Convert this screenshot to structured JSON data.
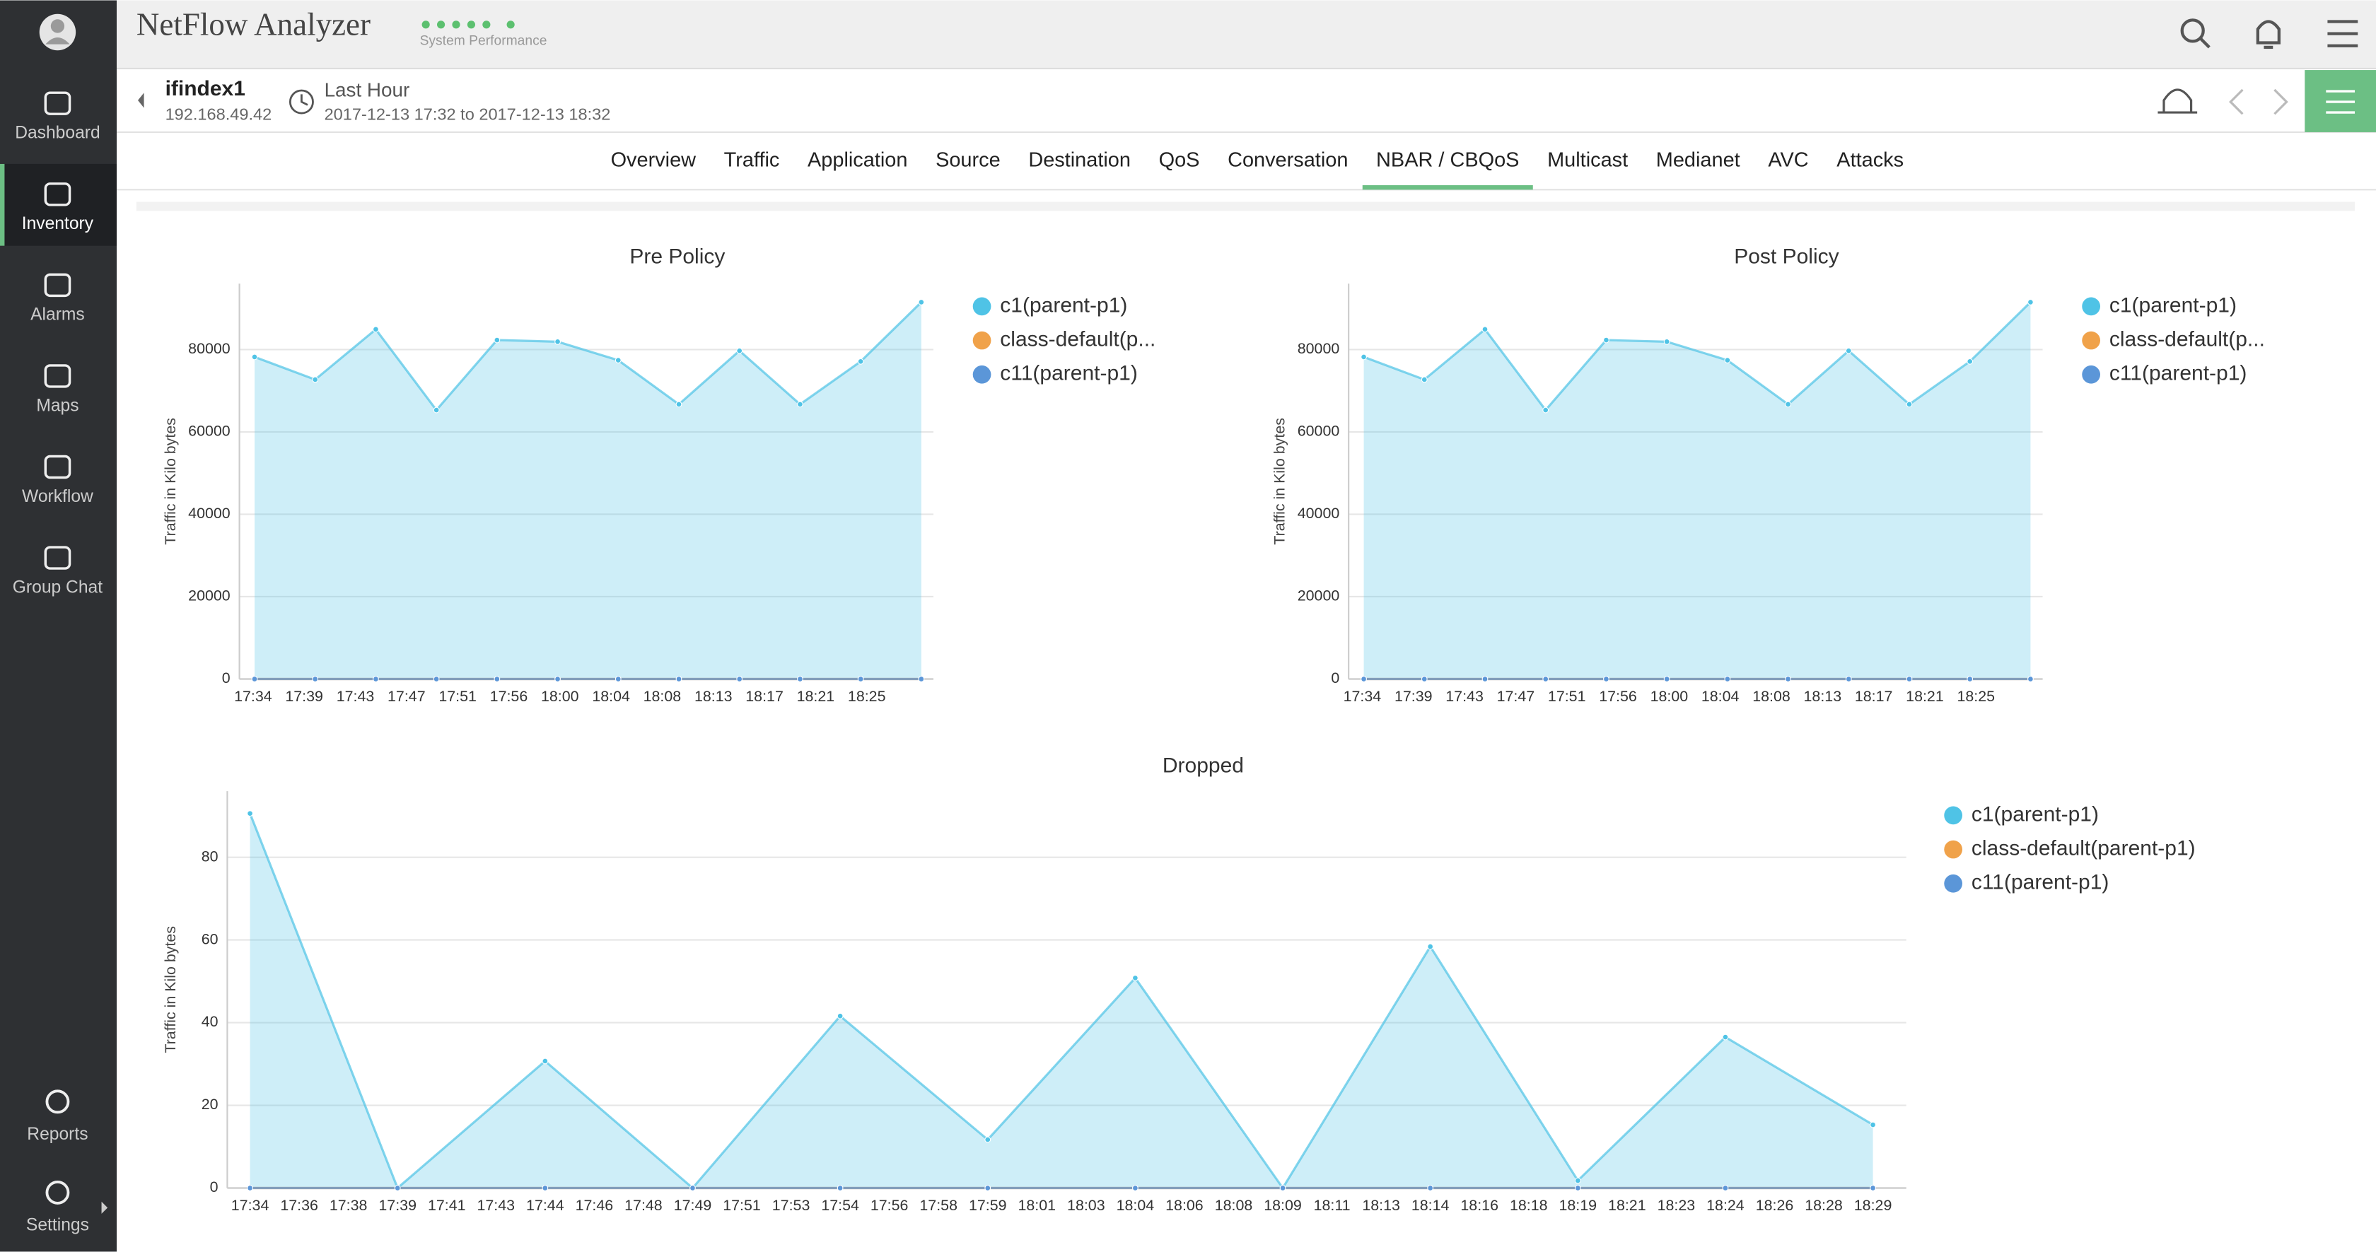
{
  "app": {
    "title": "NetFlow Analyzer",
    "status": "System Performance"
  },
  "sidebar": {
    "items": [
      "Dashboard",
      "Inventory",
      "Alarms",
      "Maps",
      "Workflow",
      "Group Chat"
    ],
    "bottom": [
      "Reports",
      "Settings"
    ],
    "active": 1
  },
  "header": {
    "name": "ifindex1",
    "ip": "192.168.49.42",
    "period": "Last Hour",
    "range": "2017-12-13 17:32 to 2017-12-13 18:32"
  },
  "tabs": {
    "items": [
      "Overview",
      "Traffic",
      "Application",
      "Source",
      "Destination",
      "QoS",
      "Conversation",
      "NBAR / CBQoS",
      "Multicast",
      "Medianet",
      "AVC",
      "Attacks"
    ],
    "active": 7
  },
  "chart_data": [
    {
      "type": "area",
      "title": "Pre Policy",
      "ylabel": "Traffic in Kilo bytes",
      "xtick_labels": [
        "17:34",
        "17:39",
        "17:43",
        "17:47",
        "17:51",
        "17:56",
        "18:00",
        "18:04",
        "18:08",
        "18:13",
        "18:17",
        "18:21",
        "18:25"
      ],
      "ylim": [
        0,
        96000
      ],
      "yticks": [
        0,
        20000,
        40000,
        60000,
        80000
      ],
      "grid": true,
      "series": [
        {
          "name": "c1(parent-p1)",
          "color": "#4fc3e6",
          "values": [
            78200,
            72700,
            84900,
            65300,
            82300,
            81900,
            77400,
            66700,
            79700,
            66700,
            77100,
            91500
          ]
        },
        {
          "name": "class-default(p...",
          "color": "#f0a24a",
          "values": [
            0,
            0,
            0,
            0,
            0,
            0,
            0,
            0,
            0,
            0,
            0,
            0
          ]
        },
        {
          "name": "c11(parent-p1)",
          "color": "#5b96d8",
          "values": [
            0,
            0,
            0,
            0,
            0,
            0,
            0,
            0,
            0,
            0,
            0,
            0
          ]
        }
      ]
    },
    {
      "type": "area",
      "title": "Post Policy",
      "ylabel": "Traffic in Kilo bytes",
      "xtick_labels": [
        "17:34",
        "17:39",
        "17:43",
        "17:47",
        "17:51",
        "17:56",
        "18:00",
        "18:04",
        "18:08",
        "18:13",
        "18:17",
        "18:21",
        "18:25"
      ],
      "ylim": [
        0,
        96000
      ],
      "yticks": [
        0,
        20000,
        40000,
        60000,
        80000
      ],
      "grid": true,
      "series": [
        {
          "name": "c1(parent-p1)",
          "color": "#4fc3e6",
          "values": [
            78200,
            72700,
            84900,
            65300,
            82300,
            81900,
            77400,
            66700,
            79700,
            66700,
            77100,
            91500
          ]
        },
        {
          "name": "class-default(p...",
          "color": "#f0a24a",
          "values": [
            0,
            0,
            0,
            0,
            0,
            0,
            0,
            0,
            0,
            0,
            0,
            0
          ]
        },
        {
          "name": "c11(parent-p1)",
          "color": "#5b96d8",
          "values": [
            0,
            0,
            0,
            0,
            0,
            0,
            0,
            0,
            0,
            0,
            0,
            0
          ]
        }
      ]
    },
    {
      "type": "area",
      "title": "Dropped",
      "ylabel": "Traffic in Kilo bytes",
      "xtick_labels": [
        "17:34",
        "17:36",
        "17:38",
        "17:39",
        "17:41",
        "17:43",
        "17:44",
        "17:46",
        "17:48",
        "17:49",
        "17:51",
        "17:53",
        "17:54",
        "17:56",
        "17:58",
        "17:59",
        "18:01",
        "18:03",
        "18:04",
        "18:06",
        "18:08",
        "18:09",
        "18:11",
        "18:13",
        "18:14",
        "18:16",
        "18:18",
        "18:19",
        "18:21",
        "18:23",
        "18:24",
        "18:26",
        "18:28",
        "18:29"
      ],
      "ylim": [
        0,
        96
      ],
      "yticks": [
        0,
        20,
        40,
        60,
        80
      ],
      "grid": true,
      "series": [
        {
          "name": "c1(parent-p1)",
          "color": "#4fc3e6",
          "values": [
            90.6,
            0,
            30.7,
            0,
            41.6,
            11.7,
            50.8,
            0,
            58.4,
            1.8,
            36.5,
            15.3
          ]
        },
        {
          "name": "class-default(parent-p1)",
          "color": "#f0a24a",
          "values": [
            0,
            0,
            0,
            0,
            0,
            0,
            0,
            0,
            0,
            0,
            0,
            0
          ]
        },
        {
          "name": "c11(parent-p1)",
          "color": "#5b96d8",
          "values": [
            0,
            0,
            0,
            0,
            0,
            0,
            0,
            0,
            0,
            0,
            0,
            0
          ]
        }
      ]
    }
  ]
}
